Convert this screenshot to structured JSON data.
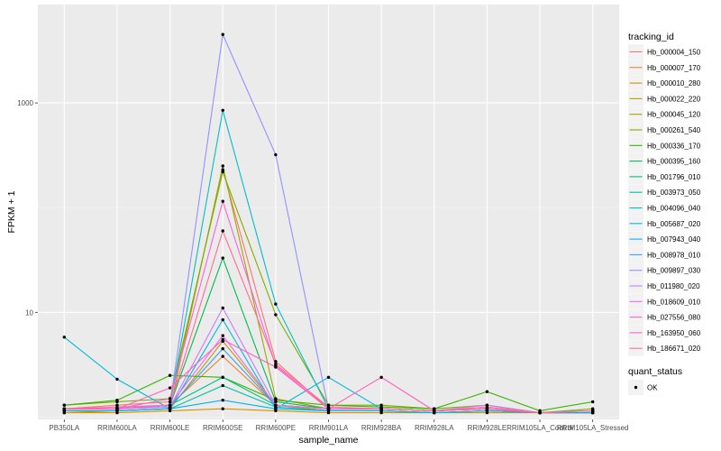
{
  "chart_data": {
    "type": "line",
    "xlabel": "sample_name",
    "ylabel": "FPKM + 1",
    "y_scale": "log10",
    "y_ticks": [
      10,
      1000
    ],
    "grid": true,
    "legend_placement": "right",
    "categories": [
      "PB350LA",
      "RRIM600LA",
      "RRIM600LE",
      "RRIM600SE",
      "RRIM600PE",
      "RRIM901LA",
      "RRIM928BA",
      "RRIM928LA",
      "RRIM928LE",
      "RRIM105LA_Control",
      "RRIM105LA_Stressed"
    ],
    "legend_title": "tracking_id",
    "series": [
      {
        "name": "Hb_000004_150",
        "color": "#F8766D",
        "values": [
          1.2,
          1.3,
          1.4,
          230,
          3.4,
          1.2,
          1.2,
          1.15,
          1.2,
          1.1,
          1.1
        ]
      },
      {
        "name": "Hb_000007_170",
        "color": "#EA8331",
        "values": [
          1.2,
          1.2,
          1.3,
          3.8,
          1.3,
          1.2,
          1.2,
          1.15,
          1.2,
          1.1,
          1.1
        ]
      },
      {
        "name": "Hb_000010_280",
        "color": "#D89000",
        "values": [
          1.1,
          1.1,
          1.15,
          1.2,
          1.15,
          1.1,
          1.1,
          1.1,
          1.1,
          1.1,
          1.1
        ]
      },
      {
        "name": "Hb_000022_220",
        "color": "#C09B00",
        "values": [
          1.1,
          1.15,
          1.2,
          5.3,
          1.3,
          1.15,
          1.15,
          1.1,
          1.15,
          1.1,
          1.1
        ]
      },
      {
        "name": "Hb_000045_120",
        "color": "#A3A500",
        "values": [
          1.15,
          1.15,
          1.2,
          250,
          1.5,
          1.2,
          1.2,
          1.15,
          1.2,
          1.1,
          1.15
        ]
      },
      {
        "name": "Hb_000261_540",
        "color": "#7CAE00",
        "values": [
          1.3,
          1.4,
          1.5,
          220,
          9.5,
          1.3,
          1.3,
          1.2,
          1.3,
          1.1,
          1.2
        ]
      },
      {
        "name": "Hb_000336_170",
        "color": "#39B600",
        "values": [
          1.3,
          1.45,
          2.5,
          2.4,
          1.45,
          1.3,
          1.25,
          1.2,
          1.75,
          1.15,
          1.4
        ]
      },
      {
        "name": "Hb_000395_160",
        "color": "#00BB4E",
        "values": [
          1.2,
          1.2,
          1.3,
          33,
          1.4,
          1.2,
          1.2,
          1.15,
          1.2,
          1.1,
          1.15
        ]
      },
      {
        "name": "Hb_001796_010",
        "color": "#00BF7D",
        "values": [
          1.2,
          1.2,
          1.3,
          2.4,
          1.3,
          1.2,
          1.2,
          1.15,
          1.2,
          1.1,
          1.15
        ]
      },
      {
        "name": "Hb_003973_050",
        "color": "#00C1A3",
        "values": [
          1.15,
          1.15,
          1.2,
          2.0,
          1.25,
          1.15,
          1.15,
          1.1,
          1.15,
          1.1,
          1.1
        ]
      },
      {
        "name": "Hb_004096_040",
        "color": "#00BFC4",
        "values": [
          1.2,
          1.2,
          1.3,
          850,
          12,
          1.2,
          1.2,
          1.15,
          1.2,
          1.1,
          1.15
        ]
      },
      {
        "name": "Hb_005687_020",
        "color": "#00BAE0",
        "values": [
          5.8,
          2.3,
          1.2,
          8.5,
          1.2,
          2.4,
          1.2,
          1.15,
          1.2,
          1.1,
          1.15
        ]
      },
      {
        "name": "Hb_007943_040",
        "color": "#00B0F6",
        "values": [
          1.15,
          1.15,
          1.2,
          1.45,
          1.2,
          1.15,
          1.15,
          1.1,
          1.15,
          1.1,
          1.1
        ]
      },
      {
        "name": "Hb_008978_010",
        "color": "#35A2FF",
        "values": [
          1.2,
          1.2,
          1.25,
          4.5,
          1.3,
          1.2,
          1.2,
          1.15,
          1.2,
          1.1,
          1.15
        ]
      },
      {
        "name": "Hb_009897_030",
        "color": "#9590FF",
        "values": [
          1.2,
          1.2,
          1.3,
          4500,
          320,
          1.2,
          1.2,
          1.15,
          1.2,
          1.1,
          1.15
        ]
      },
      {
        "name": "Hb_011980_020",
        "color": "#C77CFF",
        "values": [
          1.2,
          1.2,
          1.25,
          11,
          1.3,
          1.2,
          1.2,
          1.15,
          1.3,
          1.1,
          1.15
        ]
      },
      {
        "name": "Hb_018609_010",
        "color": "#E76BF3",
        "values": [
          1.2,
          1.2,
          1.3,
          6.0,
          1.3,
          1.2,
          1.2,
          1.15,
          1.2,
          1.1,
          1.15
        ]
      },
      {
        "name": "Hb_027556_080",
        "color": "#FA62DB",
        "values": [
          1.2,
          1.2,
          1.5,
          115,
          3.1,
          1.2,
          1.2,
          1.15,
          1.2,
          1.1,
          1.15
        ]
      },
      {
        "name": "Hb_163950_060",
        "color": "#FF62BC",
        "values": [
          1.2,
          1.2,
          1.9,
          5.5,
          3.0,
          1.2,
          2.4,
          1.15,
          1.2,
          1.1,
          1.15
        ]
      },
      {
        "name": "Hb_186671_020",
        "color": "#FF6C91",
        "values": [
          1.2,
          1.25,
          1.3,
          60,
          3.2,
          1.25,
          1.2,
          1.15,
          1.25,
          1.1,
          1.15
        ]
      }
    ],
    "shape_legend": {
      "title": "quant_status",
      "entries": [
        "OK"
      ]
    }
  }
}
